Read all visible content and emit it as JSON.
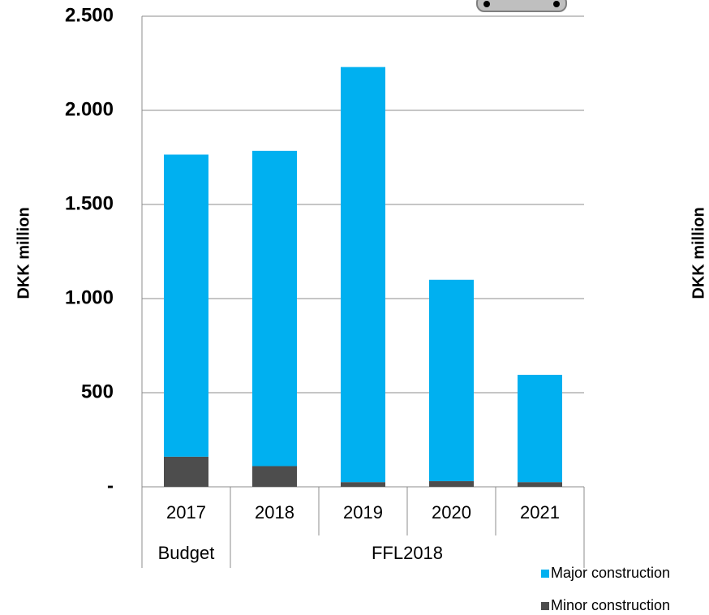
{
  "chart_data": {
    "type": "stacked_bar",
    "ylabel": "DKK million",
    "ylabel_right": "DKK million",
    "categories": [
      "2017",
      "2018",
      "2019",
      "2020",
      "2021"
    ],
    "groups": [
      {
        "label": "Budget",
        "count": 1
      },
      {
        "label": "FFL2018",
        "count": 4
      }
    ],
    "series": [
      {
        "name": "Minor construction",
        "color": "#4d4d4d",
        "values": [
          160,
          110,
          25,
          30,
          25
        ]
      },
      {
        "name": "Major construction",
        "color": "#00b0f0",
        "values": [
          1605,
          1675,
          2205,
          1070,
          570
        ]
      }
    ],
    "ylim": [
      0,
      2500
    ],
    "yticks": [
      {
        "value": 0,
        "label": "-"
      },
      500,
      {
        "value": 1000,
        "label": "1.000"
      },
      {
        "value": 1500,
        "label": "1.500"
      },
      {
        "value": 2000,
        "label": "2.000"
      },
      {
        "value": 2500,
        "label": "2.500"
      }
    ],
    "grid": true,
    "legend": "bottom-right"
  }
}
